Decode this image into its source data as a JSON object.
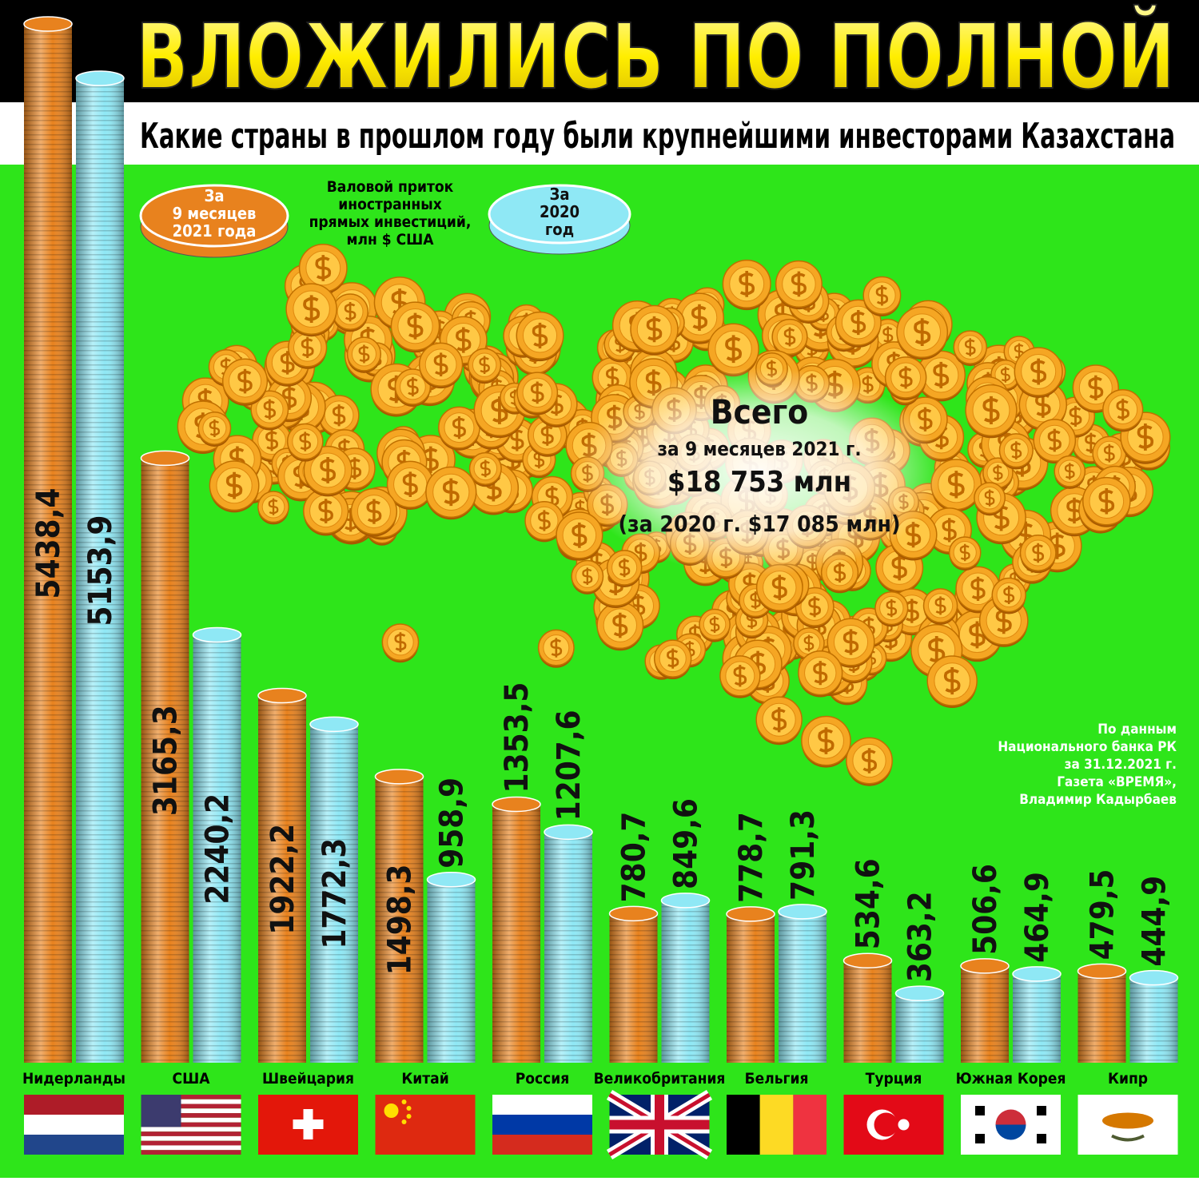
{
  "chart_data": {
    "type": "bar",
    "title": "ВЛОЖИЛИСЬ ПО ПОЛНОЙ",
    "subtitle": "Какие страны в прошлом году были крупнейшими инвесторами Казахстана",
    "legend_note": [
      "Валовой приток",
      "иностранных",
      "прямых инвестиций,",
      "млн $ США"
    ],
    "total": {
      "heading": "Всего",
      "period": "за 9 месяцев 2021 г.",
      "amount": "$18 753 млн",
      "previous": "(за 2020 г. $17 085 млн)"
    },
    "source": [
      "По данным",
      "Национального банка РК",
      "за 31.12.2021 г.",
      "Газета «ВРЕМЯ»,",
      "Владимир Кадырбаев"
    ],
    "categories": [
      "Нидерланды",
      "США",
      "Швейцария",
      "Китай",
      "Россия",
      "Великобритания",
      "Бельгия",
      "Турция",
      "Южная Корея",
      "Кипр"
    ],
    "series": [
      {
        "name": "За 9 месяцев 2021 года",
        "color": "#e8821e",
        "values": [
          5438.4,
          3165.3,
          1922.2,
          1498.3,
          1353.5,
          780.7,
          778.7,
          534.6,
          506.6,
          479.5
        ],
        "value_labels": [
          "5438,4",
          "3165,3",
          "1922,2",
          "1498,3",
          "1353,5",
          "780,7",
          "778,7",
          "534,6",
          "506,6",
          "479,5"
        ]
      },
      {
        "name": "За 2020 год",
        "color": "#8fe8f5",
        "values": [
          5153.9,
          2240.2,
          1772.3,
          958.9,
          1207.6,
          849.6,
          791.3,
          363.2,
          464.9,
          444.9
        ],
        "value_labels": [
          "5153,9",
          "2240,2",
          "1772,3",
          "958,9",
          "1207,6",
          "849,6",
          "791,3",
          "363,2",
          "464,9",
          "444,9"
        ]
      }
    ]
  }
}
